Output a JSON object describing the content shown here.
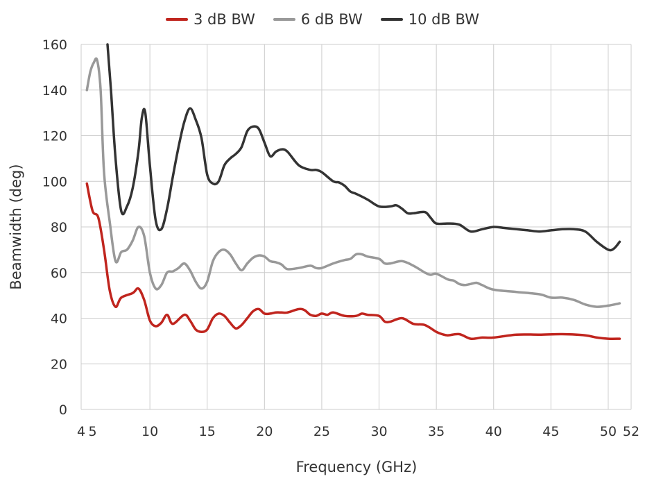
{
  "chart_data": {
    "type": "line",
    "xlabel": "Frequency (GHz)",
    "ylabel": "Beamwidth (deg)",
    "xlim": [
      4,
      52
    ],
    "ylim": [
      0,
      160
    ],
    "grid": true,
    "legend_position": "top-center",
    "x_ticks": [
      {
        "label": "4",
        "value": 4
      },
      {
        "label": "5",
        "value": 5
      },
      {
        "label": "10",
        "value": 10
      },
      {
        "label": "15",
        "value": 15
      },
      {
        "label": "20",
        "value": 20
      },
      {
        "label": "25",
        "value": 25
      },
      {
        "label": "30",
        "value": 30
      },
      {
        "label": "35",
        "value": 35
      },
      {
        "label": "40",
        "value": 40
      },
      {
        "label": "45",
        "value": 45
      },
      {
        "label": "50",
        "value": 50
      },
      {
        "label": "52",
        "value": 52
      }
    ],
    "y_ticks": [
      "0",
      "20",
      "40",
      "60",
      "80",
      "100",
      "120",
      "140",
      "160"
    ],
    "series": [
      {
        "name": "3 dB BW",
        "color": "#c0251e",
        "points": [
          [
            4.5,
            99
          ],
          [
            5,
            87
          ],
          [
            5.5,
            84
          ],
          [
            6,
            70
          ],
          [
            6.5,
            52
          ],
          [
            7,
            45
          ],
          [
            7.5,
            49
          ],
          [
            8.5,
            51
          ],
          [
            9,
            53
          ],
          [
            9.5,
            48
          ],
          [
            10,
            39
          ],
          [
            10.5,
            36.5
          ],
          [
            11,
            38
          ],
          [
            11.5,
            41.5
          ],
          [
            12,
            37.5
          ],
          [
            13,
            41.5
          ],
          [
            13.5,
            39
          ],
          [
            14,
            35
          ],
          [
            14.5,
            34
          ],
          [
            15,
            35
          ],
          [
            15.5,
            40
          ],
          [
            16,
            42
          ],
          [
            16.5,
            41
          ],
          [
            17,
            38
          ],
          [
            17.5,
            35.5
          ],
          [
            18,
            37
          ],
          [
            18.5,
            40
          ],
          [
            19,
            43
          ],
          [
            19.5,
            44
          ],
          [
            20,
            42
          ],
          [
            20.5,
            42
          ],
          [
            21,
            42.5
          ],
          [
            21.5,
            42.5
          ],
          [
            22,
            42.5
          ],
          [
            23,
            44
          ],
          [
            23.5,
            43.5
          ],
          [
            24,
            41.5
          ],
          [
            24.5,
            41
          ],
          [
            25,
            42
          ],
          [
            25.5,
            41.5
          ],
          [
            26,
            42.5
          ],
          [
            27,
            41
          ],
          [
            28,
            41
          ],
          [
            28.5,
            42
          ],
          [
            29,
            41.5
          ],
          [
            30,
            41
          ],
          [
            30.5,
            38.5
          ],
          [
            31,
            38.5
          ],
          [
            32,
            40
          ],
          [
            33,
            37.5
          ],
          [
            34,
            37
          ],
          [
            35,
            34
          ],
          [
            35.5,
            33
          ],
          [
            36,
            32.5
          ],
          [
            37,
            33
          ],
          [
            38,
            31
          ],
          [
            39,
            31.5
          ],
          [
            40,
            31.5
          ],
          [
            42,
            32.8
          ],
          [
            44,
            32.8
          ],
          [
            46,
            33
          ],
          [
            48,
            32.5
          ],
          [
            49,
            31.5
          ],
          [
            50,
            31
          ],
          [
            51,
            31
          ]
        ]
      },
      {
        "name": "6 dB BW",
        "color": "#999999",
        "points": [
          [
            4.5,
            140
          ],
          [
            4.8,
            148
          ],
          [
            5.1,
            152
          ],
          [
            5.4,
            153
          ],
          [
            5.7,
            140
          ],
          [
            6,
            104
          ],
          [
            6.5,
            82
          ],
          [
            7,
            65
          ],
          [
            7.5,
            69
          ],
          [
            8,
            70
          ],
          [
            8.5,
            74
          ],
          [
            9,
            80
          ],
          [
            9.5,
            76
          ],
          [
            10,
            60
          ],
          [
            10.5,
            53
          ],
          [
            11,
            54.5
          ],
          [
            11.5,
            60
          ],
          [
            12,
            60.5
          ],
          [
            12.5,
            62
          ],
          [
            13,
            64
          ],
          [
            13.5,
            61
          ],
          [
            14,
            56
          ],
          [
            14.5,
            53
          ],
          [
            15,
            56
          ],
          [
            15.5,
            65
          ],
          [
            16,
            69
          ],
          [
            16.5,
            70
          ],
          [
            17,
            68
          ],
          [
            17.5,
            64
          ],
          [
            18,
            61
          ],
          [
            18.5,
            64
          ],
          [
            19,
            66.5
          ],
          [
            19.5,
            67.5
          ],
          [
            20,
            67
          ],
          [
            20.5,
            65
          ],
          [
            21,
            64.5
          ],
          [
            21.5,
            63.5
          ],
          [
            22,
            61.5
          ],
          [
            23,
            62
          ],
          [
            24,
            63
          ],
          [
            24.5,
            62
          ],
          [
            25,
            62
          ],
          [
            26,
            64
          ],
          [
            27,
            65.5
          ],
          [
            27.5,
            66
          ],
          [
            28,
            68
          ],
          [
            28.5,
            68
          ],
          [
            29,
            67
          ],
          [
            30,
            66
          ],
          [
            30.5,
            64
          ],
          [
            31,
            64
          ],
          [
            32,
            65
          ],
          [
            33,
            63
          ],
          [
            34,
            60
          ],
          [
            34.5,
            59
          ],
          [
            35,
            59.5
          ],
          [
            36,
            57
          ],
          [
            36.5,
            56.5
          ],
          [
            37,
            55
          ],
          [
            37.5,
            54.5
          ],
          [
            38,
            55
          ],
          [
            38.5,
            55.5
          ],
          [
            39,
            54.5
          ],
          [
            40,
            52.5
          ],
          [
            42,
            51.5
          ],
          [
            44,
            50.5
          ],
          [
            45,
            49
          ],
          [
            46,
            49
          ],
          [
            47,
            48
          ],
          [
            48,
            46
          ],
          [
            49,
            45
          ],
          [
            50,
            45.5
          ],
          [
            51,
            46.5
          ]
        ]
      },
      {
        "name": "10 dB BW",
        "color": "#333333",
        "points": [
          [
            6.3,
            160
          ],
          [
            6.6,
            140
          ],
          [
            7,
            110
          ],
          [
            7.5,
            87
          ],
          [
            8,
            89
          ],
          [
            8.5,
            97
          ],
          [
            9,
            113
          ],
          [
            9.3,
            128
          ],
          [
            9.6,
            130
          ],
          [
            10,
            107
          ],
          [
            10.5,
            83
          ],
          [
            11,
            79
          ],
          [
            11.5,
            88
          ],
          [
            12,
            102
          ],
          [
            12.5,
            115
          ],
          [
            13,
            126
          ],
          [
            13.5,
            132
          ],
          [
            14,
            127
          ],
          [
            14.5,
            119
          ],
          [
            15,
            103
          ],
          [
            15.5,
            99
          ],
          [
            16,
            100
          ],
          [
            16.5,
            107
          ],
          [
            17,
            110
          ],
          [
            17.5,
            112
          ],
          [
            18,
            115
          ],
          [
            18.5,
            122
          ],
          [
            19,
            124
          ],
          [
            19.5,
            123
          ],
          [
            20,
            117
          ],
          [
            20.5,
            111
          ],
          [
            21,
            113
          ],
          [
            21.5,
            114
          ],
          [
            22,
            113
          ],
          [
            23,
            107
          ],
          [
            24,
            105
          ],
          [
            24.5,
            105
          ],
          [
            25,
            104
          ],
          [
            26,
            100
          ],
          [
            26.5,
            99.5
          ],
          [
            27,
            98
          ],
          [
            27.5,
            95.5
          ],
          [
            28,
            94.5
          ],
          [
            29,
            92
          ],
          [
            30,
            89
          ],
          [
            31,
            89
          ],
          [
            31.5,
            89.5
          ],
          [
            32,
            88
          ],
          [
            32.5,
            86
          ],
          [
            33,
            86
          ],
          [
            34,
            86.5
          ],
          [
            34.5,
            84
          ],
          [
            35,
            81.5
          ],
          [
            36,
            81.5
          ],
          [
            37,
            81
          ],
          [
            38,
            78
          ],
          [
            39,
            79
          ],
          [
            40,
            80
          ],
          [
            41,
            79.5
          ],
          [
            42,
            79
          ],
          [
            43,
            78.5
          ],
          [
            44,
            78
          ],
          [
            45,
            78.5
          ],
          [
            46,
            79
          ],
          [
            47,
            79
          ],
          [
            48,
            78
          ],
          [
            49,
            73.5
          ],
          [
            50,
            70
          ],
          [
            50.5,
            70.5
          ],
          [
            51,
            73.5
          ]
        ]
      }
    ]
  }
}
